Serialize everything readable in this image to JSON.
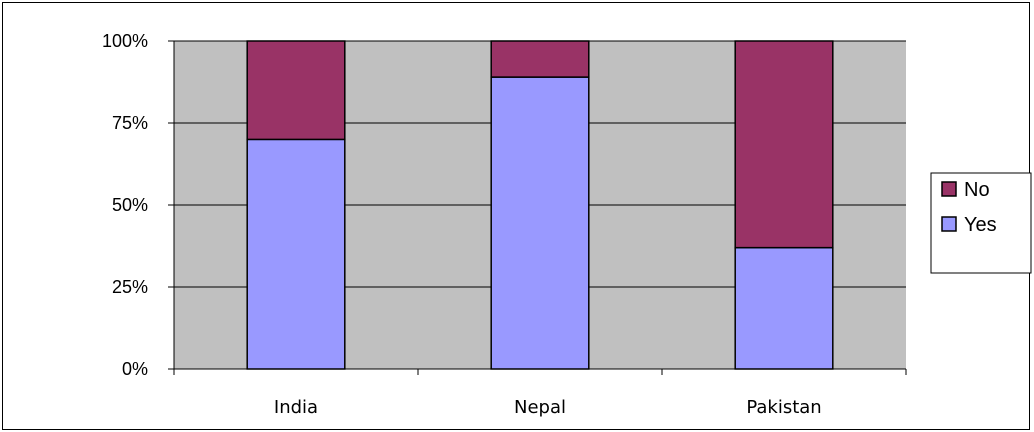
{
  "chart_data": {
    "type": "bar",
    "stacked": "percent",
    "categories": [
      "India",
      "Nepal",
      "Pakistan"
    ],
    "series": [
      {
        "name": "Yes",
        "values": [
          70,
          89,
          37
        ],
        "color": "#9999ff"
      },
      {
        "name": "No",
        "values": [
          30,
          11,
          63
        ],
        "color": "#993366"
      }
    ],
    "ylim": [
      0,
      100
    ],
    "yticks": [
      0,
      25,
      50,
      75,
      100
    ],
    "ytick_labels": [
      "0%",
      "25%",
      "50%",
      "75%",
      "100%"
    ],
    "title": "",
    "xlabel": "",
    "ylabel": "",
    "grid": true,
    "plot_background": "#c0c0c0",
    "legend_position": "right",
    "legend_order": [
      "No",
      "Yes"
    ]
  }
}
